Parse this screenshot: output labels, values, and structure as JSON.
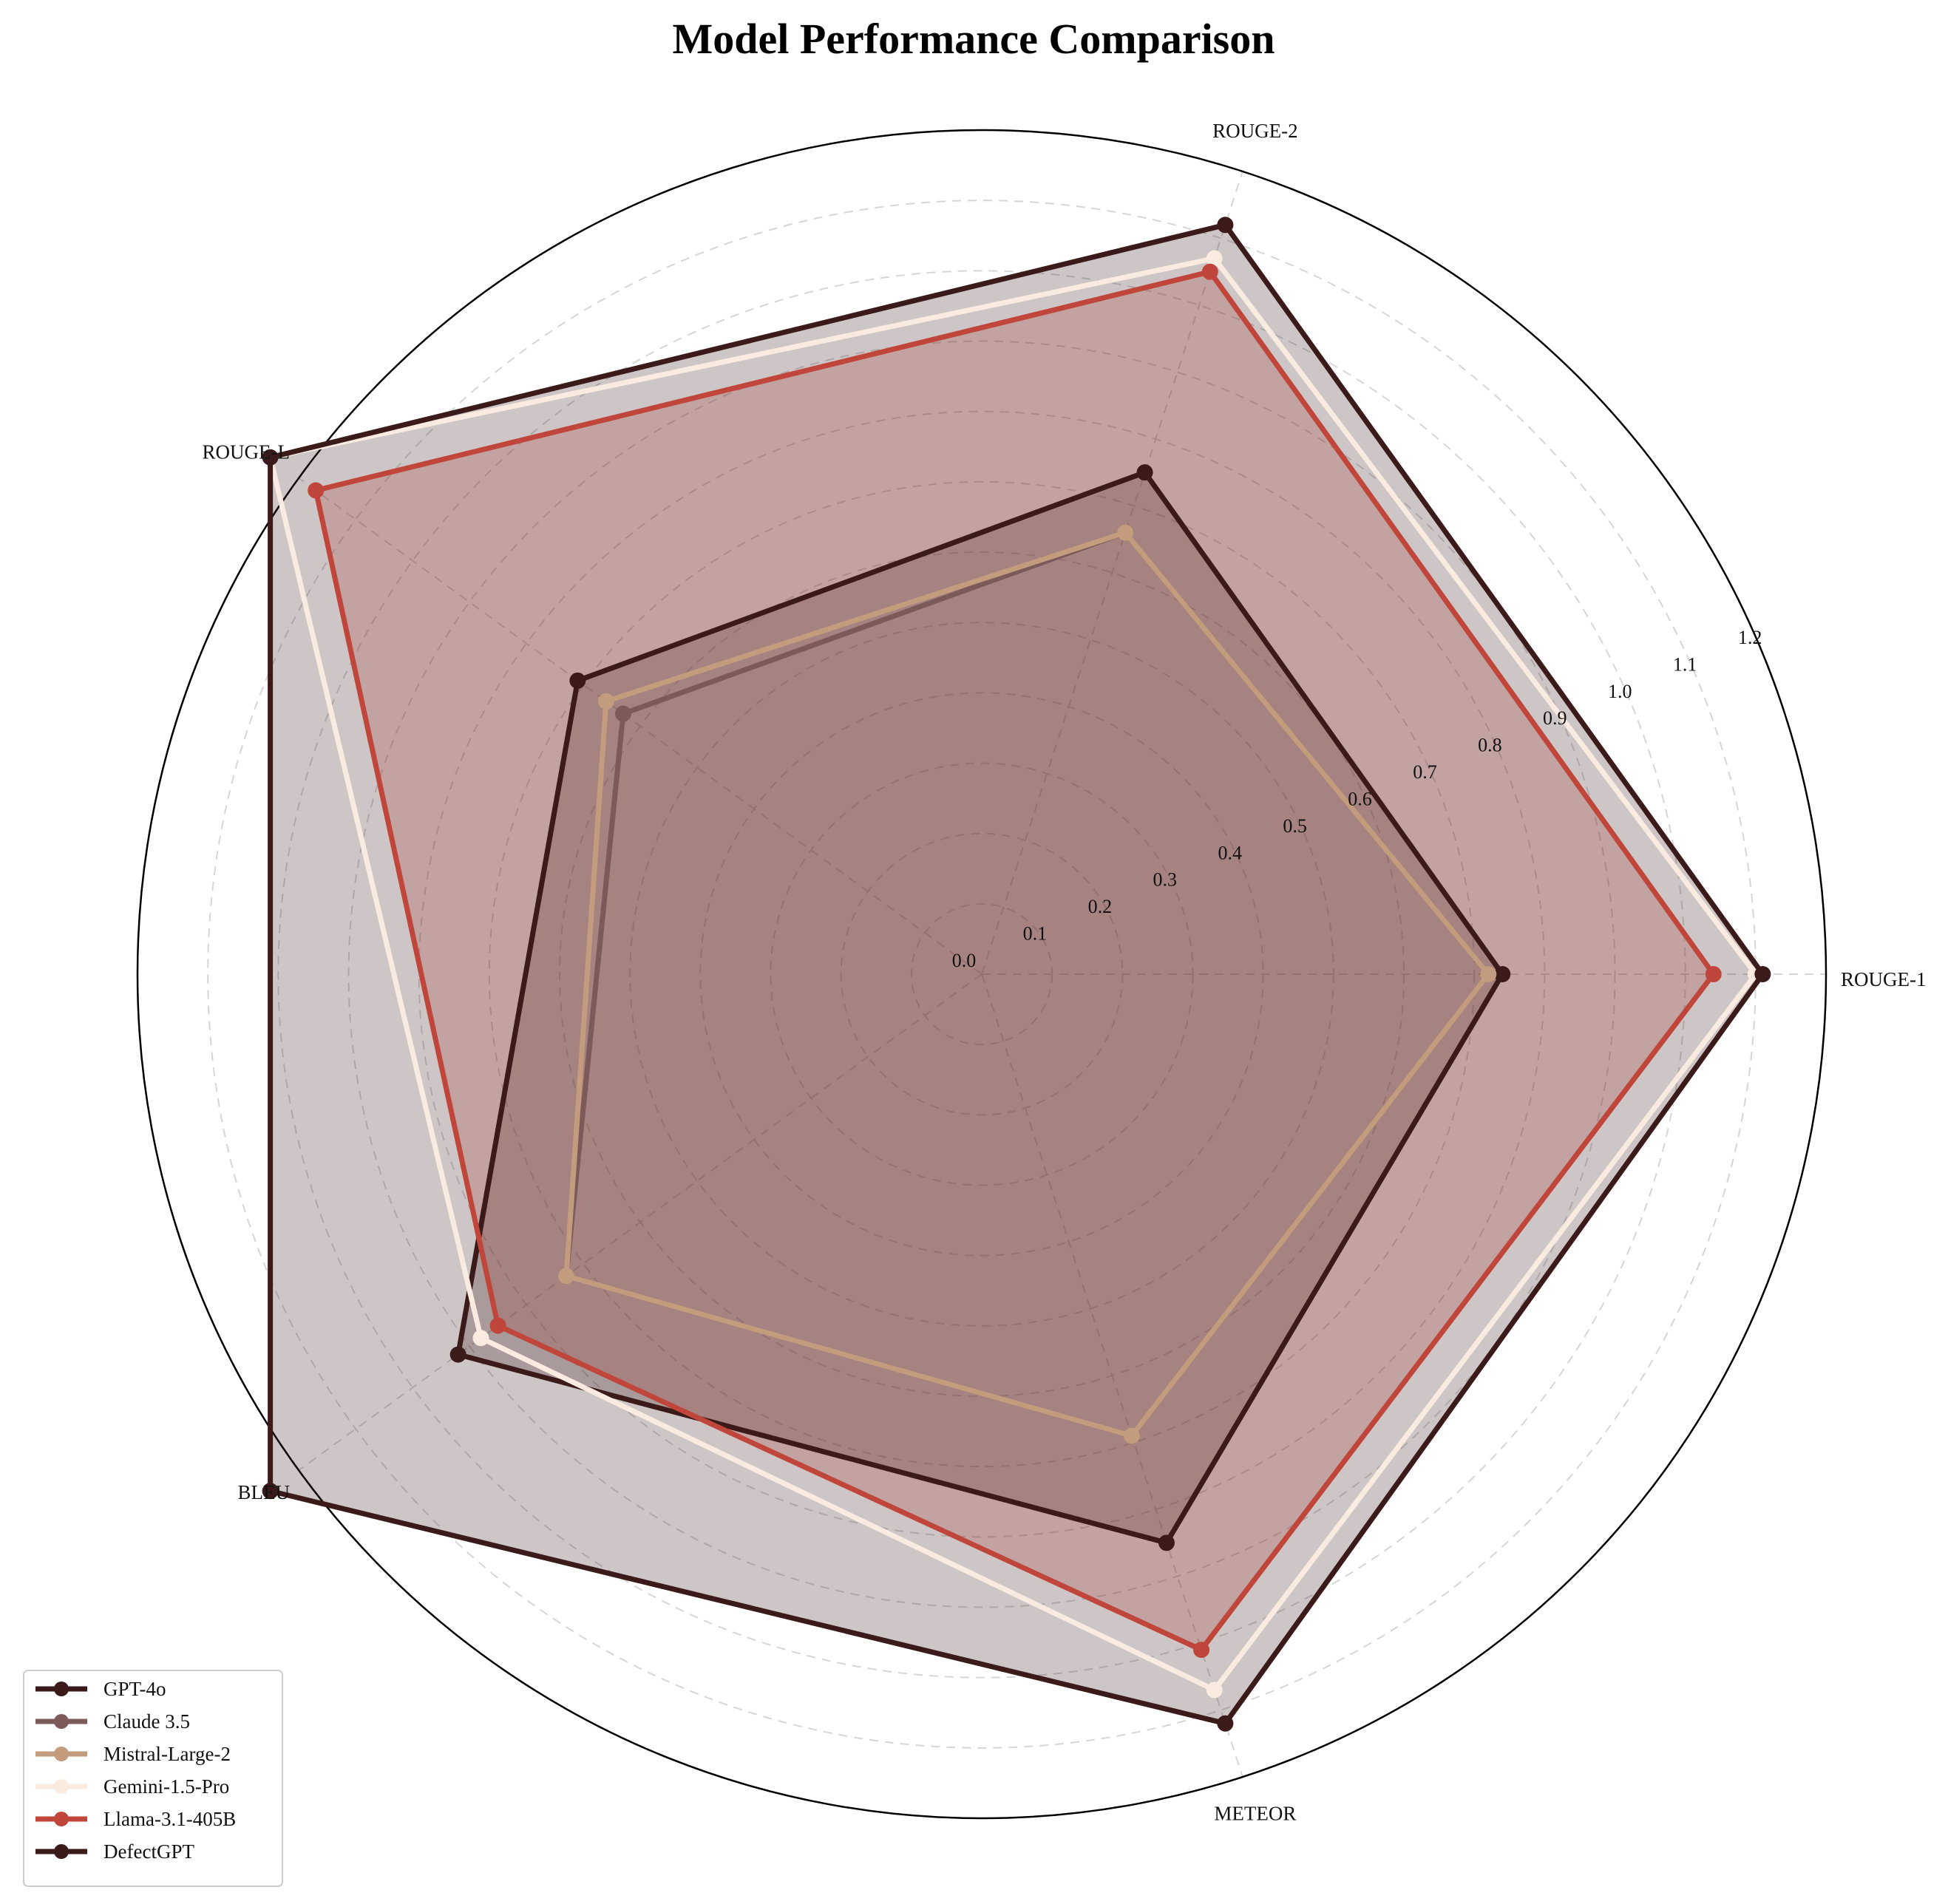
{
  "chart_data": {
    "type": "radar",
    "title": "Model Performance Comparison",
    "axes": [
      "ROUGE-1",
      "ROUGE-2",
      "ROUGE-L",
      "BLEU",
      "METEOR"
    ],
    "rlim": [
      0,
      1.2
    ],
    "ticks": [
      "0.0",
      "0.1",
      "0.2",
      "0.3",
      "0.4",
      "0.5",
      "0.6",
      "0.7",
      "0.8",
      "0.9",
      "1.0",
      "1.1",
      "1.2"
    ],
    "grid": "dashed circles",
    "legend_position": "lower-left",
    "series": [
      {
        "name": "GPT-4o",
        "values": [
          0.74,
          0.75,
          0.71,
          0.92,
          0.85
        ],
        "color": "#3b1a1a",
        "fill": true
      },
      {
        "name": "Claude 3.5",
        "values": [
          0.72,
          0.66,
          0.63,
          0.73,
          0.69
        ],
        "color": "#7d5a5a",
        "fill": false
      },
      {
        "name": "Mistral-Large-2",
        "values": [
          0.72,
          0.66,
          0.66,
          0.73,
          0.69
        ],
        "color": "#c39c7e",
        "fill": false
      },
      {
        "name": "Gemini-1.5-Pro",
        "values": [
          1.1,
          1.07,
          1.25,
          0.88,
          1.07
        ],
        "color": "#faebe0",
        "fill": false
      },
      {
        "name": "Llama-3.1-405B",
        "values": [
          1.04,
          1.05,
          1.17,
          0.85,
          1.01
        ],
        "color": "#c0453a",
        "fill": true
      },
      {
        "name": "DefectGPT",
        "values": [
          1.11,
          1.12,
          1.25,
          1.25,
          1.12
        ],
        "color": "#3b1a1a",
        "fill": true
      }
    ]
  }
}
